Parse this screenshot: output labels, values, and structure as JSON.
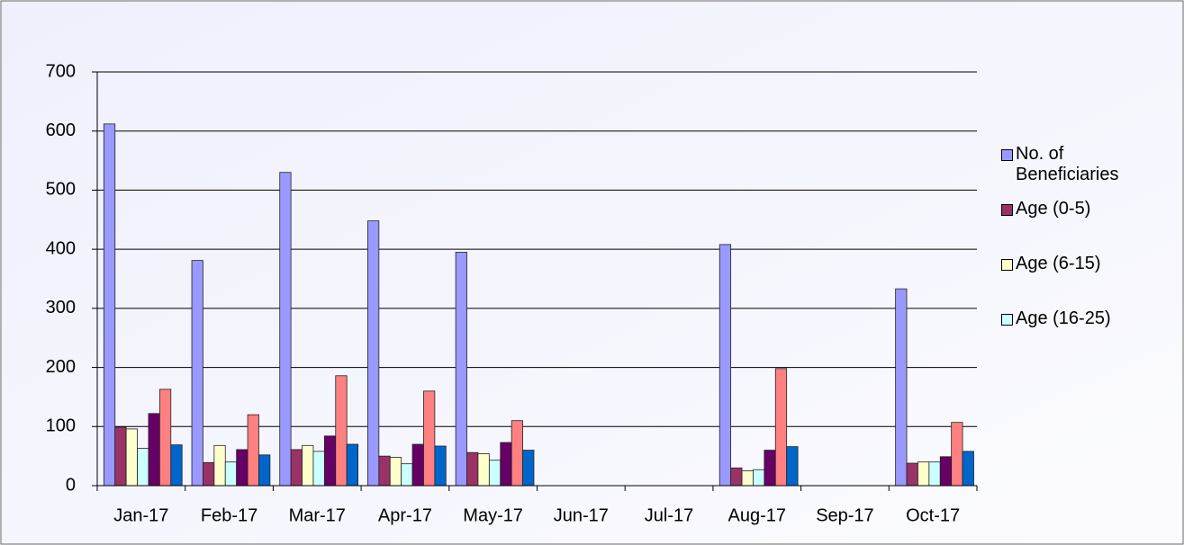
{
  "chart_data": {
    "type": "bar",
    "categories": [
      "Jan-17",
      "Feb-17",
      "Mar-17",
      "Apr-17",
      "May-17",
      "Jun-17",
      "Jul-17",
      "Aug-17",
      "Sep-17",
      "Oct-17"
    ],
    "series": [
      {
        "name": "No. of Beneficiaries",
        "color": "#9999ff",
        "values": [
          612,
          381,
          530,
          448,
          395,
          null,
          null,
          408,
          null,
          333
        ]
      },
      {
        "name": "Age (0-5)",
        "color": "#993366",
        "values": [
          99,
          39,
          61,
          50,
          56,
          null,
          null,
          30,
          null,
          38
        ]
      },
      {
        "name": "Age (6-15)",
        "color": "#ffffcc",
        "values": [
          96,
          68,
          68,
          48,
          54,
          null,
          null,
          25,
          null,
          40
        ]
      },
      {
        "name": "Age (16-25)",
        "color": "#ccffff",
        "values": [
          63,
          40,
          58,
          37,
          43,
          null,
          null,
          27,
          null,
          40
        ]
      },
      {
        "color": "#660066",
        "values": [
          122,
          61,
          84,
          70,
          73,
          null,
          null,
          60,
          null,
          49
        ]
      },
      {
        "color": "#ff8080",
        "values": [
          163,
          120,
          186,
          160,
          110,
          null,
          null,
          198,
          null,
          107
        ]
      },
      {
        "color": "#0066cc",
        "values": [
          69,
          52,
          70,
          67,
          60,
          null,
          null,
          66,
          null,
          58
        ]
      }
    ],
    "ylim": [
      0,
      700
    ],
    "yticks": [
      0,
      100,
      200,
      300,
      400,
      500,
      600,
      700
    ],
    "grid": true,
    "legend": "right"
  }
}
